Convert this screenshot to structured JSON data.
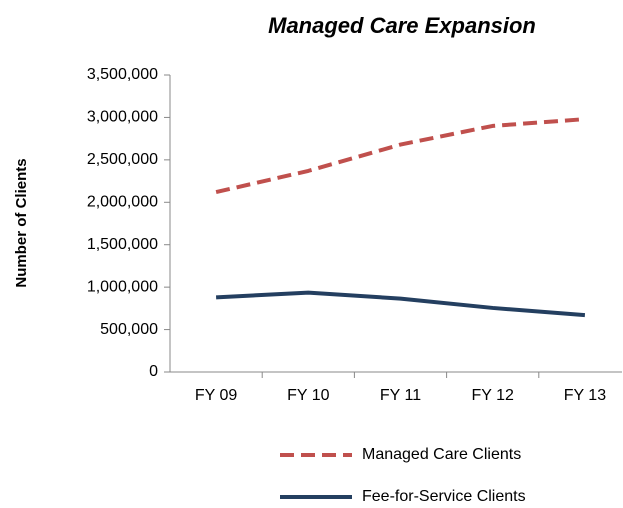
{
  "chart_data": {
    "type": "line",
    "title": "Managed Care Expansion",
    "y_label": "Number of Clients",
    "categories": [
      "FY 09",
      "FY 10",
      "FY 11",
      "FY 12",
      "FY 13"
    ],
    "series": [
      {
        "name": "Managed Care Clients",
        "color": "#c0504d",
        "dash": "dashed",
        "values": [
          2120000,
          2370000,
          2680000,
          2900000,
          2980000
        ]
      },
      {
        "name": "Fee-for-Service Clients",
        "color": "#243f60",
        "dash": "solid",
        "values": [
          880000,
          935000,
          865000,
          755000,
          670000
        ]
      }
    ],
    "ylim": [
      0,
      3500000
    ],
    "yticks": [
      0,
      {
        "value": 500000,
        "label": "500,000"
      },
      {
        "value": 1000000,
        "label": "1,000,000"
      },
      {
        "value": 1500000,
        "label": "1,500,000"
      },
      {
        "value": 2000000,
        "label": "2,000,000"
      },
      {
        "value": 2500000,
        "label": "2,500,000"
      },
      {
        "value": 3000000,
        "label": "3,000,000"
      },
      {
        "value": 3500000,
        "label": "3,500,000"
      }
    ],
    "legend": "bottom"
  }
}
